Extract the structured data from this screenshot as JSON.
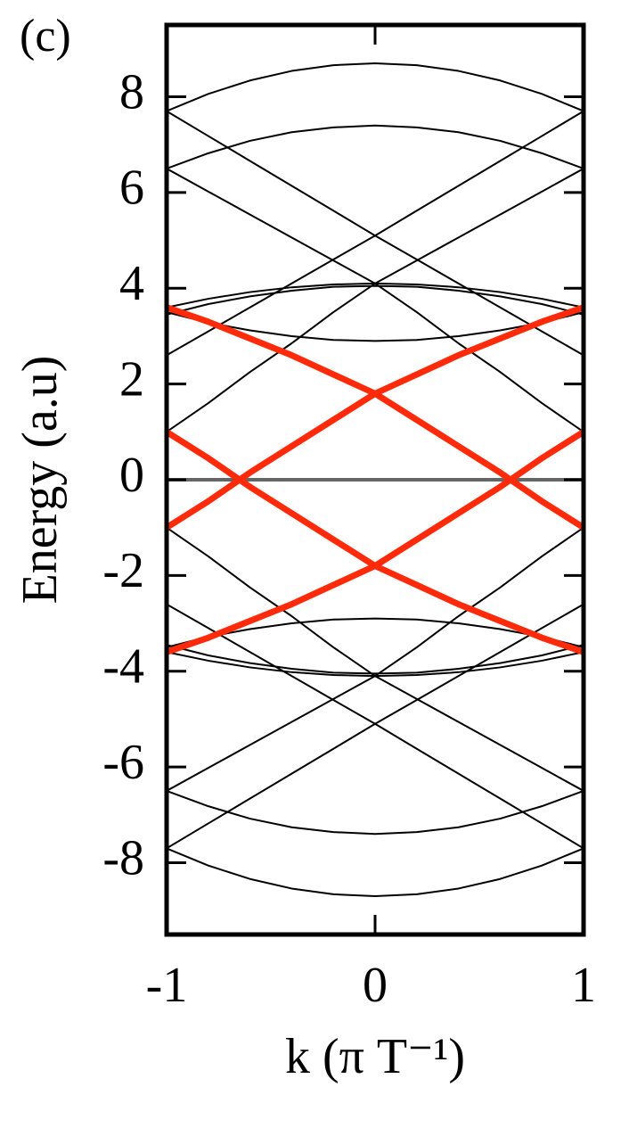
{
  "chart_data": {
    "type": "line",
    "panel_label": "(c)",
    "xlabel": "k (π T⁻¹)",
    "ylabel": "Energy (a.u)",
    "xlim": [
      -1,
      1
    ],
    "ylim": [
      -9.5,
      9.5
    ],
    "xticks": [
      -1,
      0,
      1
    ],
    "yticks": [
      -8,
      -6,
      -4,
      -2,
      0,
      2,
      4,
      6,
      8
    ],
    "x": [
      -1,
      -0.8,
      -0.6,
      -0.4,
      -0.2,
      0,
      0.2,
      0.4,
      0.6,
      0.8,
      1
    ],
    "series": [
      {
        "color": "#000000",
        "linewidth": 2,
        "values": [
          7.7,
          8.06,
          8.34,
          8.54,
          8.66,
          8.7,
          8.66,
          8.54,
          8.34,
          8.06,
          7.7
        ]
      },
      {
        "color": "#000000",
        "linewidth": 2,
        "values": [
          6.5,
          6.82,
          7.08,
          7.26,
          7.36,
          7.4,
          7.36,
          7.26,
          7.08,
          6.82,
          6.5
        ]
      },
      {
        "color": "#000000",
        "linewidth": 2,
        "values": [
          7.7,
          7.18,
          6.66,
          6.14,
          5.62,
          5.1,
          4.6,
          4.1,
          3.6,
          3.1,
          2.6
        ]
      },
      {
        "color": "#000000",
        "linewidth": 2,
        "values": [
          2.6,
          3.1,
          3.6,
          4.1,
          4.6,
          5.1,
          5.62,
          6.14,
          6.66,
          7.18,
          7.7
        ]
      },
      {
        "color": "#000000",
        "linewidth": 2,
        "values": [
          6.5,
          6.02,
          5.54,
          5.06,
          4.58,
          4.1,
          3.5,
          2.85,
          2.25,
          1.6,
          1.0
        ]
      },
      {
        "color": "#000000",
        "linewidth": 2,
        "values": [
          1.0,
          1.6,
          2.25,
          2.85,
          3.5,
          4.1,
          4.58,
          5.06,
          5.54,
          6.02,
          6.5
        ]
      },
      {
        "color": "#000000",
        "linewidth": 2,
        "values": [
          3.6,
          3.78,
          3.92,
          4.02,
          4.08,
          4.1,
          4.08,
          4.02,
          3.92,
          3.78,
          3.6
        ]
      },
      {
        "color": "#000000",
        "linewidth": 2,
        "values": [
          3.45,
          3.67,
          3.83,
          3.95,
          4.03,
          4.05,
          4.03,
          3.95,
          3.83,
          3.67,
          3.45
        ]
      },
      {
        "color": "#000000",
        "linewidth": 2,
        "values": [
          3.5,
          3.28,
          3.12,
          3.0,
          2.92,
          2.9,
          2.92,
          3.0,
          3.12,
          3.28,
          3.5
        ]
      },
      {
        "color": "#000000",
        "linewidth": 2,
        "values": [
          -7.7,
          -8.06,
          -8.34,
          -8.54,
          -8.66,
          -8.7,
          -8.66,
          -8.54,
          -8.34,
          -8.06,
          -7.7
        ]
      },
      {
        "color": "#000000",
        "linewidth": 2,
        "values": [
          -6.5,
          -6.82,
          -7.08,
          -7.26,
          -7.36,
          -7.4,
          -7.36,
          -7.26,
          -7.08,
          -6.82,
          -6.5
        ]
      },
      {
        "color": "#000000",
        "linewidth": 2,
        "values": [
          -7.7,
          -7.18,
          -6.66,
          -6.14,
          -5.62,
          -5.1,
          -4.6,
          -4.1,
          -3.6,
          -3.1,
          -2.6
        ]
      },
      {
        "color": "#000000",
        "linewidth": 2,
        "values": [
          -2.6,
          -3.1,
          -3.6,
          -4.1,
          -4.6,
          -5.1,
          -5.62,
          -6.14,
          -6.66,
          -7.18,
          -7.7
        ]
      },
      {
        "color": "#000000",
        "linewidth": 2,
        "values": [
          -6.5,
          -6.02,
          -5.54,
          -5.06,
          -4.58,
          -4.1,
          -3.5,
          -2.85,
          -2.25,
          -1.6,
          -1.0
        ]
      },
      {
        "color": "#000000",
        "linewidth": 2,
        "values": [
          -1.0,
          -1.6,
          -2.25,
          -2.85,
          -3.5,
          -4.1,
          -4.58,
          -5.06,
          -5.54,
          -6.02,
          -6.5
        ]
      },
      {
        "color": "#000000",
        "linewidth": 2,
        "values": [
          -3.6,
          -3.78,
          -3.92,
          -4.02,
          -4.08,
          -4.1,
          -4.08,
          -4.02,
          -3.92,
          -3.78,
          -3.6
        ]
      },
      {
        "color": "#000000",
        "linewidth": 2,
        "values": [
          -3.45,
          -3.67,
          -3.83,
          -3.95,
          -4.03,
          -4.05,
          -4.03,
          -3.95,
          -3.83,
          -3.67,
          -3.45
        ]
      },
      {
        "color": "#000000",
        "linewidth": 2,
        "values": [
          -3.5,
          -3.28,
          -3.12,
          -3.0,
          -2.92,
          -2.9,
          -2.92,
          -3.0,
          -3.12,
          -3.28,
          -3.5
        ]
      },
      {
        "color": "#666666",
        "linewidth": 4,
        "values": [
          0,
          0,
          0,
          0,
          0,
          0,
          0,
          0,
          0,
          0,
          0
        ]
      },
      {
        "color": "#ff2a0a",
        "linewidth": 7,
        "values": [
          3.6,
          3.3,
          2.95,
          2.6,
          2.2,
          1.8,
          1.25,
          0.7,
          0.15,
          -0.45,
          -1.0
        ]
      },
      {
        "color": "#ff2a0a",
        "linewidth": 7,
        "values": [
          1.0,
          0.45,
          -0.15,
          -0.7,
          -1.25,
          -1.8,
          -2.2,
          -2.6,
          -2.95,
          -3.3,
          -3.6
        ]
      },
      {
        "color": "#ff2a0a",
        "linewidth": 7,
        "values": [
          -1.0,
          -0.45,
          0.15,
          0.7,
          1.25,
          1.8,
          2.2,
          2.6,
          2.95,
          3.3,
          3.6
        ]
      },
      {
        "color": "#ff2a0a",
        "linewidth": 7,
        "values": [
          -3.6,
          -3.3,
          -2.95,
          -2.6,
          -2.2,
          -1.8,
          -1.25,
          -0.7,
          -0.15,
          0.45,
          1.0
        ]
      }
    ]
  }
}
